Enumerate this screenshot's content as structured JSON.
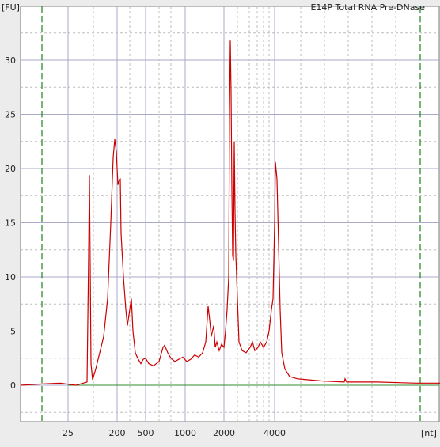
{
  "chart_data": {
    "type": "line",
    "title": "E14P Total RNA Pre-DNase",
    "xlabel": "[nt]",
    "ylabel": "[FU]",
    "ylim": [
      -3,
      35
    ],
    "yticks": [
      0,
      5,
      10,
      15,
      20,
      25,
      30
    ],
    "xticks": [
      "25",
      "200",
      "500",
      "1000",
      "2000",
      "4000"
    ],
    "grid": true,
    "colors": {
      "signal": "#cc0000",
      "baseline": "#2e8b2e",
      "marker": "#2e8b2e",
      "grid_major": "#a9a9c8",
      "grid_minor": "#bdbdbd"
    },
    "series": [
      {
        "values": [
          [
            0,
            0
          ],
          [
            22,
            0.1
          ],
          [
            50,
            0.2
          ],
          [
            70,
            0
          ],
          [
            84,
            0.3
          ],
          [
            86,
            12
          ],
          [
            87,
            19.4
          ],
          [
            88,
            11
          ],
          [
            89,
            2
          ],
          [
            91,
            0.5
          ],
          [
            95,
            1.5
          ],
          [
            100,
            3
          ],
          [
            105,
            4.5
          ],
          [
            110,
            8
          ],
          [
            114,
            15
          ],
          [
            117,
            21
          ],
          [
            119,
            22.7
          ],
          [
            121,
            21.5
          ],
          [
            123,
            18.5
          ],
          [
            124,
            18.8
          ],
          [
            126,
            19
          ],
          [
            127,
            14
          ],
          [
            130,
            10
          ],
          [
            133,
            7
          ],
          [
            135,
            5.5
          ],
          [
            137,
            6.5
          ],
          [
            139,
            7.5
          ],
          [
            140,
            8
          ],
          [
            142,
            5
          ],
          [
            145,
            3
          ],
          [
            148,
            2.5
          ],
          [
            152,
            2
          ],
          [
            155,
            2.4
          ],
          [
            158,
            2.5
          ],
          [
            162,
            2
          ],
          [
            168,
            1.8
          ],
          [
            175,
            2.2
          ],
          [
            180,
            3.5
          ],
          [
            182,
            3.7
          ],
          [
            186,
            3
          ],
          [
            190,
            2.5
          ],
          [
            195,
            2.2
          ],
          [
            200,
            2.4
          ],
          [
            205,
            2.6
          ],
          [
            210,
            2.2
          ],
          [
            215,
            2.4
          ],
          [
            220,
            2.8
          ],
          [
            225,
            2.6
          ],
          [
            230,
            3
          ],
          [
            234,
            4
          ],
          [
            237,
            7.3
          ],
          [
            239,
            6
          ],
          [
            241,
            4.5
          ],
          [
            244,
            5.5
          ],
          [
            246,
            3.5
          ],
          [
            248,
            4
          ],
          [
            251,
            3.2
          ],
          [
            254,
            3.8
          ],
          [
            257,
            3.5
          ],
          [
            259,
            5
          ],
          [
            261,
            7
          ],
          [
            263,
            10
          ],
          [
            264,
            25
          ],
          [
            265,
            31.8
          ],
          [
            266,
            27
          ],
          [
            267,
            18
          ],
          [
            268,
            12
          ],
          [
            269,
            11.5
          ],
          [
            270,
            22.5
          ],
          [
            271,
            16
          ],
          [
            272,
            12
          ],
          [
            274,
            8
          ],
          [
            276,
            4
          ],
          [
            280,
            3.2
          ],
          [
            285,
            3
          ],
          [
            290,
            3.5
          ],
          [
            293,
            4
          ],
          [
            296,
            3.2
          ],
          [
            300,
            3.5
          ],
          [
            303,
            4
          ],
          [
            307,
            3.5
          ],
          [
            311,
            4
          ],
          [
            314,
            5
          ],
          [
            317,
            7
          ],
          [
            319,
            8
          ],
          [
            321,
            15
          ],
          [
            322,
            20.6
          ],
          [
            324,
            19
          ],
          [
            326,
            13
          ],
          [
            328,
            7
          ],
          [
            330,
            3
          ],
          [
            334,
            1.5
          ],
          [
            340,
            0.8
          ],
          [
            350,
            0.6
          ],
          [
            380,
            0.4
          ],
          [
            409,
            0.3
          ],
          [
            410,
            0.6
          ],
          [
            412,
            0.3
          ],
          [
            450,
            0.3
          ],
          [
            500,
            0.2
          ],
          [
            530,
            0.2
          ],
          [
            537,
            0.1
          ],
          [
            540,
            0
          ]
        ]
      }
    ]
  }
}
